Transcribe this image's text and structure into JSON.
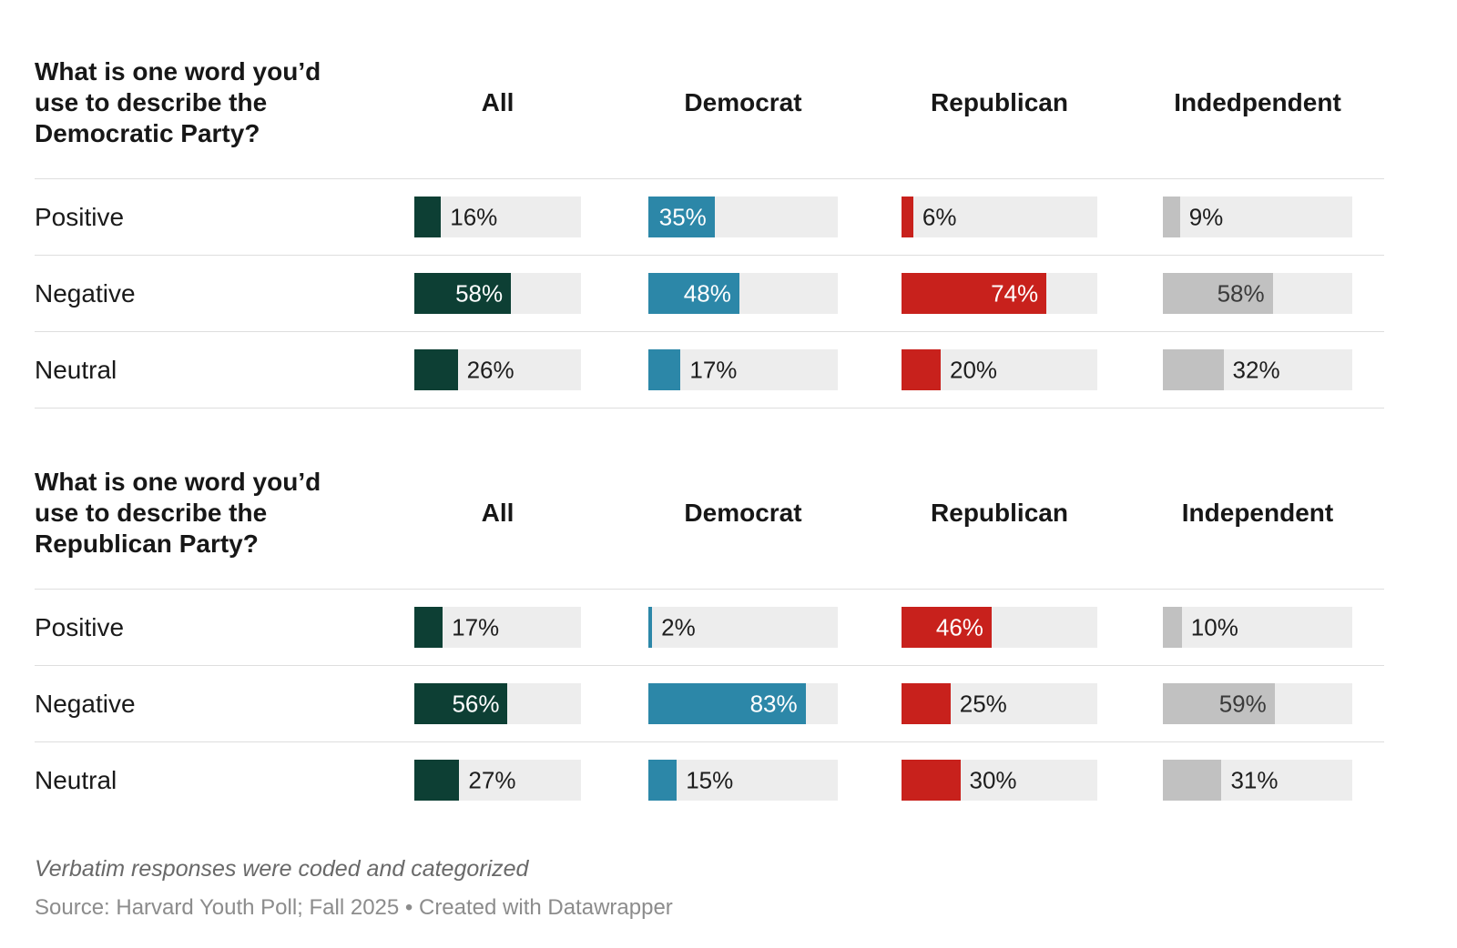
{
  "chart_data": [
    {
      "type": "bar",
      "orientation": "horizontal",
      "title": "What is one word you’d use to describe the Democratic Party?",
      "categories": [
        "Positive",
        "Negative",
        "Neutral"
      ],
      "series": [
        {
          "name": "All",
          "color": "#0d3f34",
          "values": [
            16,
            58,
            26
          ]
        },
        {
          "name": "Democrat",
          "color": "#2c87a8",
          "values": [
            35,
            48,
            17
          ]
        },
        {
          "name": "Republican",
          "color": "#c8211c",
          "values": [
            6,
            74,
            20
          ]
        },
        {
          "name": "Indedpendent",
          "color": "#c1c1c1",
          "values": [
            9,
            58,
            32
          ]
        }
      ],
      "value_suffix": "%",
      "xlim": [
        0,
        100
      ],
      "grid": false,
      "track_color": "#ededed",
      "bottom_rule": true
    },
    {
      "type": "bar",
      "orientation": "horizontal",
      "title": "What is one word you’d use to describe the Republican Party?",
      "categories": [
        "Positive",
        "Negative",
        "Neutral"
      ],
      "series": [
        {
          "name": "All",
          "color": "#0d3f34",
          "values": [
            17,
            56,
            27
          ]
        },
        {
          "name": "Democrat",
          "color": "#2c87a8",
          "values": [
            2,
            83,
            15
          ]
        },
        {
          "name": "Republican",
          "color": "#c8211c",
          "values": [
            46,
            25,
            30
          ]
        },
        {
          "name": "Independent",
          "color": "#c1c1c1",
          "values": [
            10,
            59,
            31
          ]
        }
      ],
      "value_suffix": "%",
      "xlim": [
        0,
        100
      ],
      "grid": false,
      "track_color": "#ededed",
      "bottom_rule": false
    }
  ],
  "footer": {
    "note": "Verbatim responses were coded and categorized",
    "source": "Source: Harvard Youth Poll; Fall 2025 • Created with Datawrapper"
  },
  "styles": {
    "inside_label_light": "#ffffff",
    "inside_label_dark": "#3a3a3a",
    "outside_label": "#1d1d1d",
    "rule_color": "#dedede"
  }
}
